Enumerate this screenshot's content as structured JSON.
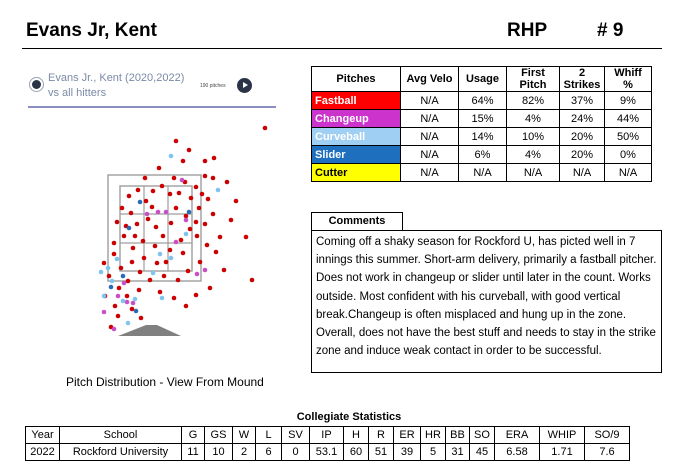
{
  "header": {
    "player_name": "Evans Jr, Kent",
    "position": "RHP",
    "number": "# 9"
  },
  "player_bar": {
    "title": "Evans Jr., Kent (2020,2022) vs all hitters",
    "pitch_count": "190 pitches",
    "play_icon": "play-icon"
  },
  "plot": {
    "caption": "Pitch Distribution - View From Mound"
  },
  "pitch_table": {
    "headers": [
      "Pitches",
      "Avg Velo",
      "Usage",
      "First Pitch",
      "2 Strikes",
      "Whiff %"
    ],
    "rows": [
      {
        "name": "Fastball",
        "color": "#ff0000",
        "text_color": "#ffffff",
        "cells": [
          "N/A",
          "64%",
          "82%",
          "37%",
          "9%"
        ]
      },
      {
        "name": "Changeup",
        "color": "#cc33cc",
        "text_color": "#ffffff",
        "cells": [
          "N/A",
          "15%",
          "4%",
          "24%",
          "44%"
        ]
      },
      {
        "name": "Curveball",
        "color": "#9fcff2",
        "text_color": "#ffffff",
        "cells": [
          "N/A",
          "14%",
          "10%",
          "20%",
          "50%"
        ]
      },
      {
        "name": "Slider",
        "color": "#1f6fbf",
        "text_color": "#ffffff",
        "cells": [
          "N/A",
          "6%",
          "4%",
          "20%",
          "0%"
        ]
      },
      {
        "name": "Cutter",
        "color": "#ffff00",
        "text_color": "#000000",
        "cells": [
          "N/A",
          "N/A",
          "N/A",
          "N/A",
          "N/A"
        ]
      }
    ]
  },
  "comments": {
    "label": "Comments",
    "text": "Coming off a shaky season for Rockford U, has picted well in 7 innings this summer. Short-arm delivery, primarily a fastball pitcher. Does not work in changeup or slider until later in the count. Works outside. Most confident with his curveball, with good vertical break.Changeup is often misplaced and hung up in the zone. Overall, does not have the best stuff and needs to stay in the strike zone and induce weak contact in order to be successful."
  },
  "stats": {
    "title": "Collegiate Statistics",
    "headers": [
      "Year",
      "School",
      "G",
      "GS",
      "W",
      "L",
      "SV",
      "IP",
      "H",
      "R",
      "ER",
      "HR",
      "BB",
      "SO",
      "ERA",
      "WHIP",
      "SO/9"
    ],
    "rows": [
      [
        "2022",
        "Rockford University",
        "11",
        "10",
        "2",
        "6",
        "0",
        "53.1",
        "60",
        "51",
        "39",
        "5",
        "31",
        "45",
        "6.58",
        "1.71",
        "7.6"
      ]
    ]
  },
  "colors": {
    "fastball": "#cc0000",
    "changeup": "#c94fc9",
    "curveball": "#7fc4ee",
    "slider": "#2a6cb5",
    "zone_line": "#9e9e9e",
    "mound": "#808080"
  }
}
